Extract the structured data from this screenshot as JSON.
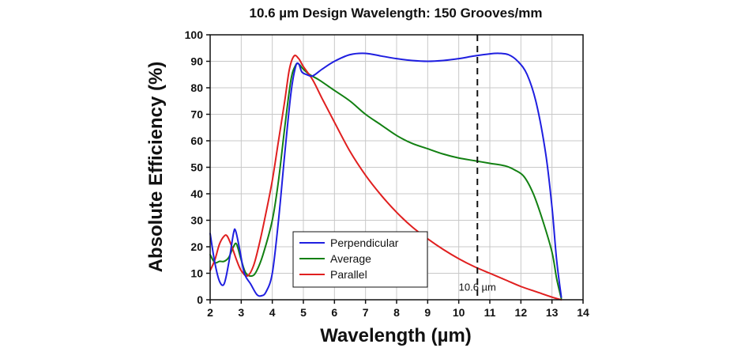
{
  "chart_data": {
    "type": "line",
    "title": "10.6 µm Design Wavelength: 150 Grooves/mm",
    "xlabel": "Wavelength (µm)",
    "ylabel": "Absolute Efficiency (%)",
    "xlim": [
      2,
      14
    ],
    "ylim": [
      0,
      100
    ],
    "xticks": [
      2,
      3,
      4,
      5,
      6,
      7,
      8,
      9,
      10,
      11,
      12,
      13,
      14
    ],
    "yticks": [
      0,
      10,
      20,
      30,
      40,
      50,
      60,
      70,
      80,
      90,
      100
    ],
    "grid": true,
    "legend_position": "bottom-center",
    "annotation": {
      "text": "10.6 µm",
      "x": 10.6,
      "style": "dashed-vertical-line"
    },
    "series": [
      {
        "name": "Perpendicular",
        "color": "#1f1fe0",
        "points": [
          [
            2.0,
            25
          ],
          [
            2.15,
            14
          ],
          [
            2.3,
            7
          ],
          [
            2.45,
            6
          ],
          [
            2.6,
            14
          ],
          [
            2.75,
            25
          ],
          [
            2.82,
            26
          ],
          [
            2.95,
            19
          ],
          [
            3.1,
            10
          ],
          [
            3.3,
            6
          ],
          [
            3.5,
            2
          ],
          [
            3.65,
            1.5
          ],
          [
            3.8,
            3
          ],
          [
            4.0,
            10
          ],
          [
            4.2,
            30
          ],
          [
            4.4,
            55
          ],
          [
            4.6,
            78
          ],
          [
            4.75,
            88
          ],
          [
            4.85,
            89
          ],
          [
            4.95,
            86
          ],
          [
            5.1,
            85
          ],
          [
            5.3,
            84.5
          ],
          [
            5.6,
            87
          ],
          [
            6.0,
            90
          ],
          [
            6.5,
            92.5
          ],
          [
            7.0,
            93
          ],
          [
            7.5,
            92
          ],
          [
            8.0,
            91
          ],
          [
            8.5,
            90.3
          ],
          [
            9.0,
            90
          ],
          [
            9.5,
            90.3
          ],
          [
            10.0,
            91
          ],
          [
            10.5,
            92
          ],
          [
            11.0,
            92.8
          ],
          [
            11.3,
            93
          ],
          [
            11.6,
            92.5
          ],
          [
            11.9,
            90
          ],
          [
            12.2,
            85
          ],
          [
            12.5,
            74
          ],
          [
            12.8,
            55
          ],
          [
            13.0,
            35
          ],
          [
            13.15,
            15
          ],
          [
            13.3,
            1
          ]
        ]
      },
      {
        "name": "Average",
        "color": "#128012",
        "points": [
          [
            2.0,
            17
          ],
          [
            2.15,
            14
          ],
          [
            2.3,
            14.5
          ],
          [
            2.45,
            14.5
          ],
          [
            2.6,
            16
          ],
          [
            2.75,
            20
          ],
          [
            2.85,
            21
          ],
          [
            3.0,
            15
          ],
          [
            3.15,
            10
          ],
          [
            3.35,
            9
          ],
          [
            3.5,
            11
          ],
          [
            3.7,
            17
          ],
          [
            4.0,
            30
          ],
          [
            4.2,
            45
          ],
          [
            4.4,
            65
          ],
          [
            4.6,
            83
          ],
          [
            4.75,
            88.5
          ],
          [
            4.85,
            89
          ],
          [
            5.0,
            87
          ],
          [
            5.2,
            85
          ],
          [
            5.5,
            83
          ],
          [
            6.0,
            79
          ],
          [
            6.5,
            75
          ],
          [
            7.0,
            70
          ],
          [
            7.5,
            66
          ],
          [
            8.0,
            62
          ],
          [
            8.5,
            59
          ],
          [
            9.0,
            57
          ],
          [
            9.5,
            55
          ],
          [
            10.0,
            53.5
          ],
          [
            10.5,
            52.5
          ],
          [
            11.0,
            51.5
          ],
          [
            11.5,
            50.5
          ],
          [
            11.8,
            49
          ],
          [
            12.1,
            46.5
          ],
          [
            12.4,
            40
          ],
          [
            12.7,
            30
          ],
          [
            13.0,
            18
          ],
          [
            13.15,
            8
          ],
          [
            13.3,
            0.5
          ]
        ]
      },
      {
        "name": "Parallel",
        "color": "#e01f1f",
        "points": [
          [
            2.0,
            11
          ],
          [
            2.15,
            15
          ],
          [
            2.3,
            21
          ],
          [
            2.45,
            24
          ],
          [
            2.55,
            24
          ],
          [
            2.7,
            20
          ],
          [
            2.85,
            15
          ],
          [
            3.0,
            11
          ],
          [
            3.2,
            9
          ],
          [
            3.4,
            13
          ],
          [
            3.6,
            22
          ],
          [
            3.8,
            33
          ],
          [
            4.0,
            45
          ],
          [
            4.2,
            60
          ],
          [
            4.4,
            75
          ],
          [
            4.55,
            87
          ],
          [
            4.7,
            92
          ],
          [
            4.85,
            91
          ],
          [
            5.0,
            88
          ],
          [
            5.3,
            83
          ],
          [
            5.6,
            76
          ],
          [
            6.0,
            67
          ],
          [
            6.5,
            56
          ],
          [
            7.0,
            47
          ],
          [
            7.5,
            39.5
          ],
          [
            8.0,
            33
          ],
          [
            8.5,
            27.5
          ],
          [
            9.0,
            23
          ],
          [
            9.5,
            19
          ],
          [
            10.0,
            15.5
          ],
          [
            10.5,
            12.5
          ],
          [
            11.0,
            10
          ],
          [
            11.5,
            7.5
          ],
          [
            12.0,
            5
          ],
          [
            12.5,
            3
          ],
          [
            13.0,
            1
          ],
          [
            13.3,
            0
          ]
        ]
      }
    ]
  }
}
